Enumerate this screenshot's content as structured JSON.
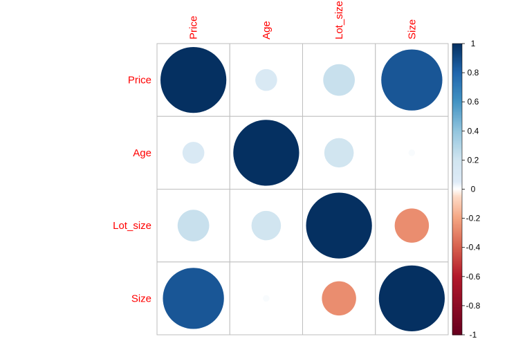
{
  "chart_data": {
    "type": "heatmap",
    "title": "",
    "variables": [
      "Price",
      "Age",
      "Lot_size",
      "Size"
    ],
    "matrix": [
      [
        1.0,
        0.11,
        0.23,
        0.86
      ],
      [
        0.11,
        1.0,
        0.2,
        0.01
      ],
      [
        0.23,
        0.2,
        1.0,
        -0.27
      ],
      [
        0.86,
        0.01,
        -0.27,
        1.0
      ]
    ],
    "colorbar": {
      "range": [
        -1,
        1
      ],
      "ticks": [
        1,
        0.8,
        0.6,
        0.4,
        0.2,
        0,
        -0.2,
        -0.4,
        -0.6,
        -0.8,
        -1
      ],
      "tick_labels": [
        "1",
        "0.8",
        "0.6",
        "0.4",
        "0.2",
        "0",
        "-0.2",
        "-0.4",
        "-0.6",
        "-0.8",
        "-1"
      ]
    },
    "colors": {
      "negative_extreme": "#67001f",
      "negative_mid": "#d6604d",
      "neutral": "#ffffff",
      "positive_mid": "#4393c3",
      "positive_extreme": "#053061",
      "label": "#ff0000",
      "grid": "#bebebe"
    }
  }
}
